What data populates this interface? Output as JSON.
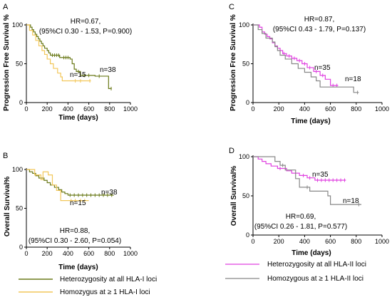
{
  "chart_data": [
    {
      "panel": "A",
      "type": "line",
      "title": "",
      "xlabel": "Time (days)",
      "ylabel": "Progression Free Survival %",
      "xlim": [
        0,
        1000
      ],
      "ylim": [
        0,
        100
      ],
      "xticks": [
        0,
        200,
        400,
        600,
        800,
        1000
      ],
      "yticks": [
        0,
        50,
        100
      ],
      "annotation": [
        "HR=0.67,",
        "(95%CI 0.30 - 1.53, P=0.900)"
      ],
      "series": [
        {
          "color": "#6b7a1a",
          "end_label": "n=38",
          "steps": [
            [
              0,
              100
            ],
            [
              40,
              97
            ],
            [
              55,
              94
            ],
            [
              70,
              91
            ],
            [
              85,
              88
            ],
            [
              100,
              85
            ],
            [
              115,
              82
            ],
            [
              130,
              79
            ],
            [
              145,
              76
            ],
            [
              160,
              73
            ],
            [
              175,
              70
            ],
            [
              200,
              67
            ],
            [
              215,
              64
            ],
            [
              230,
              61
            ],
            [
              320,
              58
            ],
            [
              420,
              56
            ],
            [
              440,
              50
            ],
            [
              460,
              43
            ],
            [
              480,
              40
            ],
            [
              520,
              35
            ],
            [
              640,
              35
            ],
            [
              660,
              34
            ],
            [
              780,
              34
            ],
            [
              790,
              18
            ],
            [
              820,
              18
            ]
          ],
          "censor": [
            [
              250,
              61
            ],
            [
              270,
              61
            ],
            [
              290,
              61
            ],
            [
              310,
              61
            ],
            [
              360,
              58
            ],
            [
              380,
              58
            ],
            [
              400,
              58
            ],
            [
              500,
              40
            ],
            [
              560,
              35
            ],
            [
              600,
              35
            ],
            [
              700,
              34
            ],
            [
              815,
              18
            ]
          ]
        },
        {
          "color": "#f2c75a",
          "end_label": "n=15",
          "steps": [
            [
              0,
              100
            ],
            [
              30,
              93
            ],
            [
              60,
              87
            ],
            [
              90,
              80
            ],
            [
              120,
              73
            ],
            [
              150,
              67
            ],
            [
              175,
              62
            ],
            [
              200,
              56
            ],
            [
              230,
              50
            ],
            [
              260,
              44
            ],
            [
              300,
              38
            ],
            [
              330,
              33
            ],
            [
              345,
              28
            ],
            [
              620,
              28
            ]
          ],
          "censor": [
            [
              470,
              28
            ],
            [
              520,
              28
            ],
            [
              610,
              28
            ]
          ]
        }
      ]
    },
    {
      "panel": "B",
      "type": "line",
      "title": "",
      "xlabel": "Time (days)",
      "ylabel": "Overall Survival%",
      "xlim": [
        0,
        1000
      ],
      "ylim": [
        0,
        100
      ],
      "xticks": [
        0,
        200,
        400,
        600,
        800,
        1000
      ],
      "yticks": [
        0,
        50,
        100
      ],
      "annotation": [
        "HR=0.88,",
        "(95%CI 0.30 - 2.60, P=0.054)"
      ],
      "series": [
        {
          "color": "#6b7a1a",
          "end_label": "n=38",
          "steps": [
            [
              0,
              100
            ],
            [
              30,
              97
            ],
            [
              60,
              95
            ],
            [
              90,
              92
            ],
            [
              120,
              89
            ],
            [
              170,
              86
            ],
            [
              200,
              83
            ],
            [
              230,
              80
            ],
            [
              270,
              77
            ],
            [
              310,
              74
            ],
            [
              340,
              71
            ],
            [
              370,
              69
            ],
            [
              400,
              67
            ],
            [
              840,
              67
            ]
          ],
          "censor": [
            [
              420,
              67
            ],
            [
              460,
              67
            ],
            [
              500,
              67
            ],
            [
              540,
              67
            ],
            [
              580,
              67
            ],
            [
              620,
              67
            ],
            [
              660,
              67
            ],
            [
              700,
              67
            ],
            [
              740,
              67
            ],
            [
              780,
              67
            ],
            [
              820,
              67
            ]
          ]
        },
        {
          "color": "#f2c75a",
          "end_label": "n=15",
          "steps": [
            [
              0,
              100
            ],
            [
              80,
              93
            ],
            [
              140,
              87
            ],
            [
              160,
              97
            ],
            [
              210,
              93
            ],
            [
              250,
              80
            ],
            [
              290,
              73
            ],
            [
              330,
              60
            ],
            [
              400,
              60
            ],
            [
              600,
              60
            ]
          ],
          "censor": [
            [
              430,
              60
            ],
            [
              470,
              60
            ],
            [
              520,
              60
            ],
            [
              560,
              60
            ]
          ]
        }
      ]
    },
    {
      "panel": "C",
      "type": "line",
      "title": "",
      "xlabel": "Time (days)",
      "ylabel": "Progression Free Survival %",
      "xlim": [
        0,
        1000
      ],
      "ylim": [
        0,
        100
      ],
      "xticks": [
        0,
        200,
        400,
        600,
        800,
        1000
      ],
      "yticks": [
        0,
        50,
        100
      ],
      "annotation": [
        "HR=0.87,",
        "(95%CI 0.43 - 1.79, P=0.137)"
      ],
      "series": [
        {
          "color": "#e040e0",
          "end_label": "n=35",
          "steps": [
            [
              0,
              100
            ],
            [
              50,
              97
            ],
            [
              70,
              91
            ],
            [
              90,
              88
            ],
            [
              110,
              85
            ],
            [
              130,
              82
            ],
            [
              150,
              77
            ],
            [
              170,
              73
            ],
            [
              190,
              70
            ],
            [
              210,
              67
            ],
            [
              230,
              63
            ],
            [
              260,
              60
            ],
            [
              300,
              57
            ],
            [
              340,
              54
            ],
            [
              380,
              50
            ],
            [
              420,
              45
            ],
            [
              470,
              40
            ],
            [
              520,
              35
            ],
            [
              560,
              30
            ],
            [
              600,
              22
            ],
            [
              660,
              22
            ]
          ],
          "censor": [
            [
              240,
              63
            ],
            [
              280,
              60
            ],
            [
              320,
              57
            ],
            [
              360,
              54
            ],
            [
              400,
              50
            ],
            [
              440,
              45
            ],
            [
              490,
              40
            ],
            [
              540,
              35
            ],
            [
              620,
              22
            ],
            [
              650,
              22
            ]
          ]
        },
        {
          "color": "#888888",
          "end_label": "n=18",
          "steps": [
            [
              0,
              100
            ],
            [
              40,
              94
            ],
            [
              70,
              89
            ],
            [
              100,
              83
            ],
            [
              150,
              78
            ],
            [
              170,
              72
            ],
            [
              190,
              67
            ],
            [
              210,
              61
            ],
            [
              250,
              56
            ],
            [
              300,
              50
            ],
            [
              350,
              44
            ],
            [
              400,
              39
            ],
            [
              450,
              33
            ],
            [
              490,
              28
            ],
            [
              520,
              20
            ],
            [
              760,
              20
            ],
            [
              780,
              13
            ],
            [
              820,
              13
            ]
          ],
          "censor": [
            [
              810,
              13
            ]
          ]
        }
      ]
    },
    {
      "panel": "D",
      "type": "line",
      "title": "",
      "xlabel": "Time (days)",
      "ylabel": "Overall Survival%",
      "xlim": [
        0,
        1000
      ],
      "ylim": [
        0,
        100
      ],
      "xticks": [
        0,
        200,
        400,
        600,
        800,
        1000
      ],
      "yticks": [
        0,
        50,
        100
      ],
      "annotation": [
        "HR=0.69,",
        "(95%CI 0.26 - 1.81, P=0.577)"
      ],
      "series": [
        {
          "color": "#e040e0",
          "end_label": "n=35",
          "steps": [
            [
              0,
              100
            ],
            [
              40,
              97
            ],
            [
              70,
              94
            ],
            [
              100,
              91
            ],
            [
              140,
              88
            ],
            [
              190,
              85
            ],
            [
              260,
              82
            ],
            [
              300,
              79
            ],
            [
              360,
              76
            ],
            [
              420,
              73
            ],
            [
              480,
              70
            ],
            [
              720,
              70
            ]
          ],
          "censor": [
            [
              210,
              85
            ],
            [
              390,
              76
            ],
            [
              440,
              73
            ],
            [
              500,
              70
            ],
            [
              530,
              70
            ],
            [
              560,
              70
            ],
            [
              590,
              70
            ],
            [
              620,
              70
            ],
            [
              650,
              70
            ],
            [
              680,
              70
            ],
            [
              710,
              70
            ]
          ]
        },
        {
          "color": "#888888",
          "end_label": "n=18",
          "steps": [
            [
              0,
              100
            ],
            [
              140,
              100
            ],
            [
              170,
              94
            ],
            [
              210,
              89
            ],
            [
              250,
              83
            ],
            [
              330,
              72
            ],
            [
              360,
              61
            ],
            [
              390,
              61
            ],
            [
              440,
              56
            ],
            [
              580,
              50
            ],
            [
              600,
              39
            ],
            [
              720,
              39
            ],
            [
              760,
              39
            ],
            [
              840,
              39
            ]
          ],
          "censor": [
            [
              230,
              89
            ],
            [
              420,
              61
            ],
            [
              820,
              39
            ]
          ]
        }
      ]
    }
  ],
  "legend_left": [
    {
      "label": "Heterozygosity at all HLA-I loci",
      "color": "#6b7a1a"
    },
    {
      "label": "Homozygus at ≥ 1 HLA-I loci",
      "color": "#f2c75a"
    }
  ],
  "legend_right": [
    {
      "label": "Heterozygosity at all HLA-II loci",
      "color": "#e040e0"
    },
    {
      "label": "Homozygous at ≥ 1 HLA-II loci",
      "color": "#888888"
    }
  ]
}
